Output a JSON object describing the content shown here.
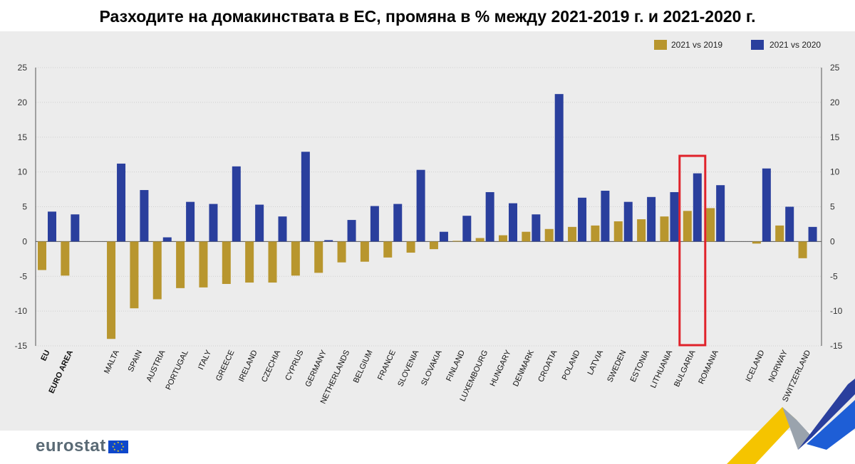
{
  "title": "Разходите на домакинствата в ЕС, промяна в % между 2021-2019 г. и 2021-2020 г.",
  "brand": "eurostat",
  "colors": {
    "series1": "#b8962e",
    "series2": "#2a3f9d",
    "highlight": "#e0222a",
    "background": "#ececec"
  },
  "icons": {
    "logo_flag": "eu-flag-icon",
    "corner_decoration": "chevron-decoration-icon"
  },
  "chart_data": {
    "type": "bar",
    "ylim": [
      -15,
      25
    ],
    "yticks": [
      -15,
      -10,
      -5,
      0,
      5,
      10,
      15,
      20,
      25
    ],
    "grid": true,
    "legend_position": "top-right",
    "highlighted_category": "BULGARIA",
    "categories": [
      "EU",
      "EURO AREA",
      "MALTA",
      "SPAIN",
      "AUSTRIA",
      "PORTUGAL",
      "ITALY",
      "GREECE",
      "IRELAND",
      "CZECHIA",
      "CYPRUS",
      "GERMANY",
      "NETHERLANDS",
      "BELGIUM",
      "FRANCE",
      "SLOVENIA",
      "SLOVAKIA",
      "FINLAND",
      "LUXEMBOURG",
      "HUNGARY",
      "DENMARK",
      "CROATIA",
      "POLAND",
      "LATVIA",
      "SWEDEN",
      "ESTONIA",
      "LITHUANIA",
      "BULGARIA",
      "ROMANIA",
      "ICELAND",
      "NORWAY",
      "SWITZERLAND"
    ],
    "bold_categories": [
      "EU",
      "EURO AREA"
    ],
    "series": [
      {
        "name": "2021 vs 2019",
        "values": [
          -4.1,
          -4.9,
          -14.0,
          -9.6,
          -8.3,
          -6.7,
          -6.6,
          -6.1,
          -5.9,
          -5.9,
          -4.9,
          -4.5,
          -3.0,
          -2.9,
          -2.3,
          -1.6,
          -1.1,
          0.1,
          0.5,
          0.9,
          1.4,
          1.8,
          2.1,
          2.3,
          2.9,
          3.2,
          3.6,
          4.4,
          4.8,
          -0.3,
          2.3,
          -2.4
        ]
      },
      {
        "name": "2021 vs 2020",
        "values": [
          4.3,
          3.9,
          11.2,
          7.4,
          0.6,
          5.7,
          5.4,
          10.8,
          5.3,
          3.6,
          12.9,
          0.2,
          3.1,
          5.1,
          5.4,
          10.3,
          1.4,
          3.7,
          7.1,
          5.5,
          3.9,
          21.2,
          6.3,
          7.3,
          5.7,
          6.4,
          7.1,
          9.8,
          8.1,
          10.5,
          5.0,
          2.1
        ]
      }
    ]
  }
}
